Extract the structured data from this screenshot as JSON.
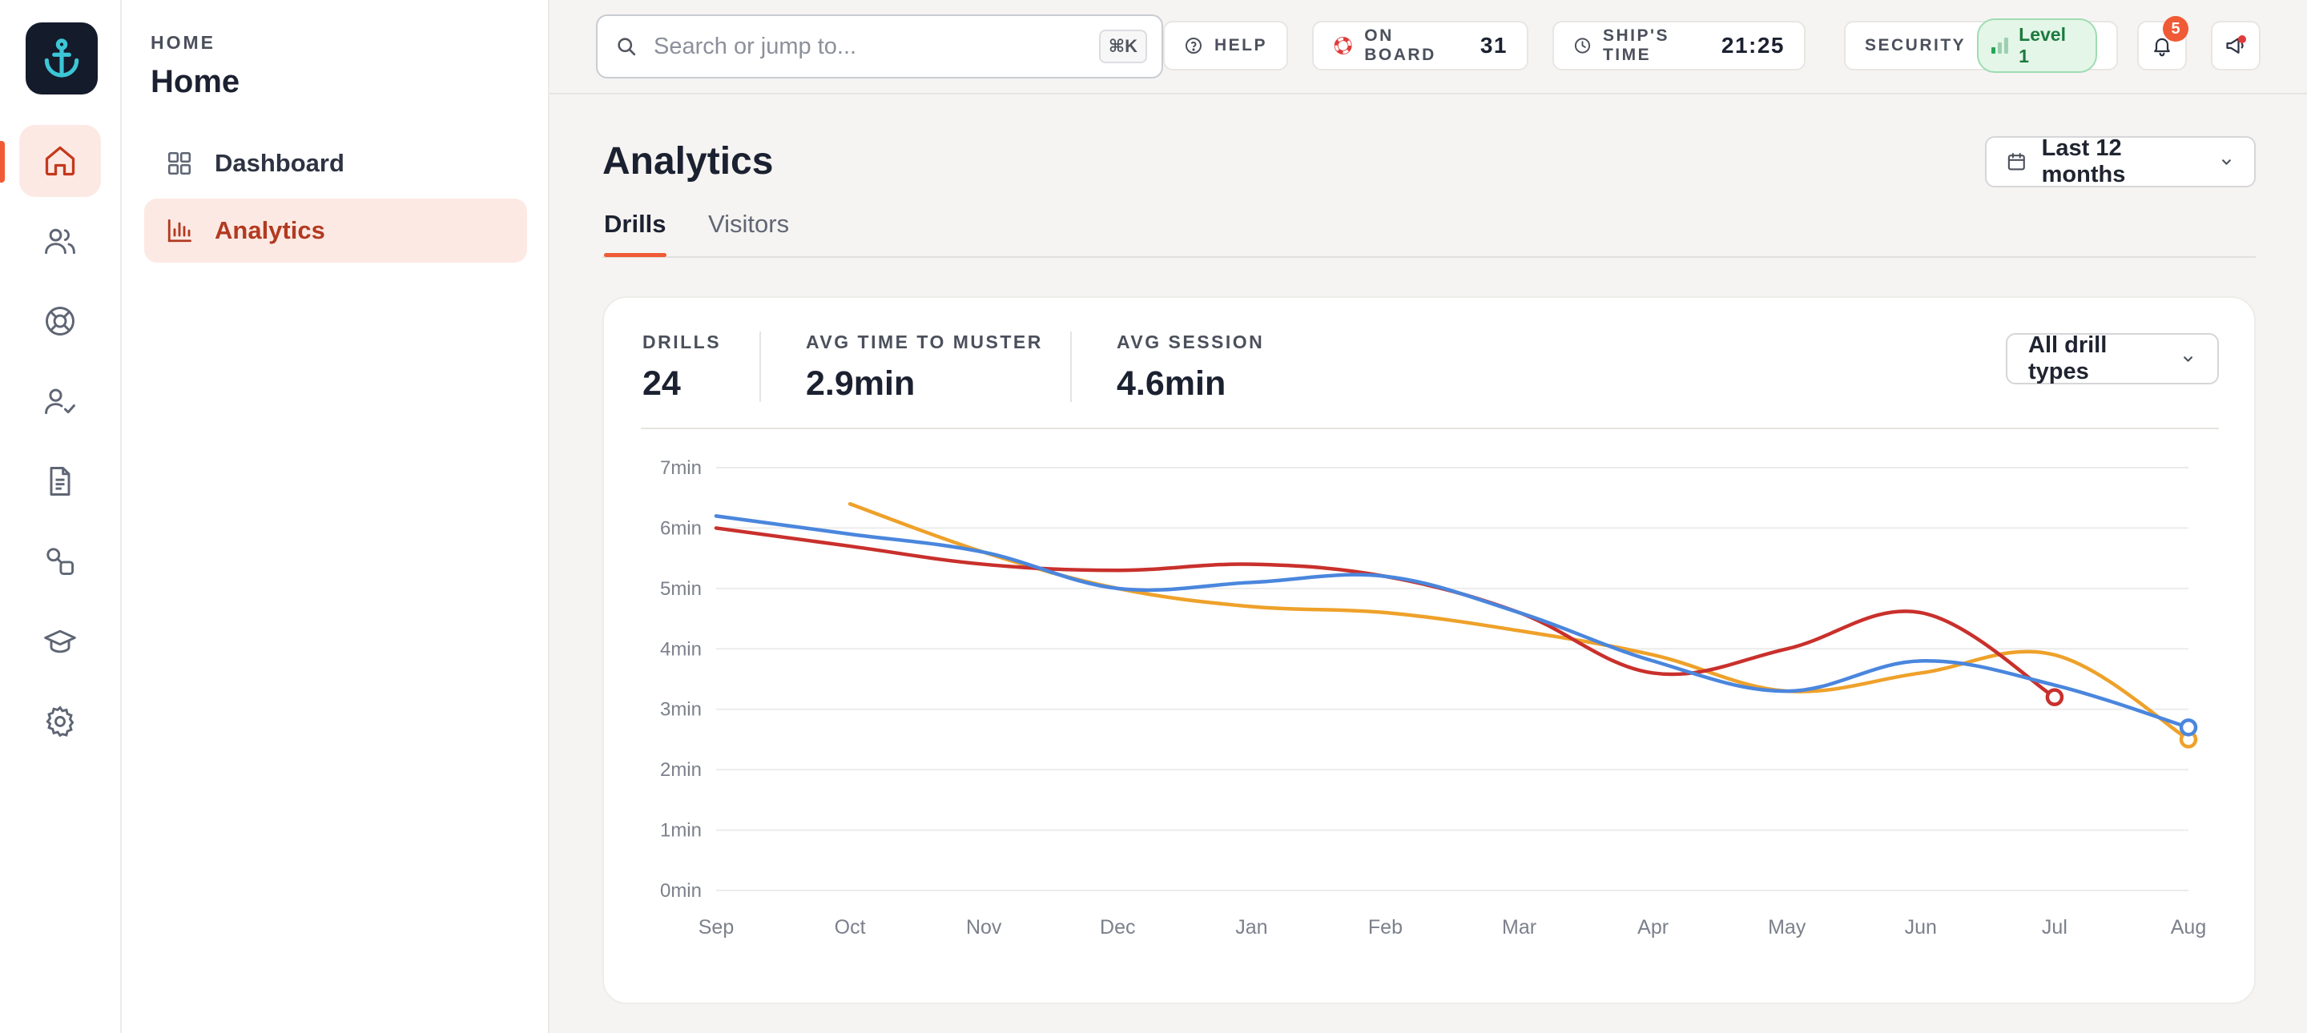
{
  "sidebar": {
    "logo_icon": "anchor-icon",
    "items": [
      {
        "icon": "home-icon",
        "active": true
      },
      {
        "icon": "users-icon"
      },
      {
        "icon": "lifebuoy-icon"
      },
      {
        "icon": "user-check-icon"
      },
      {
        "icon": "document-icon"
      },
      {
        "icon": "shapes-icon"
      },
      {
        "icon": "graduation-cap-icon"
      },
      {
        "icon": "settings-icon"
      }
    ]
  },
  "subnav": {
    "eyebrow": "HOME",
    "title": "Home",
    "items": [
      {
        "label": "Dashboard",
        "icon": "grid-icon"
      },
      {
        "label": "Analytics",
        "icon": "bar-chart-icon",
        "active": true
      }
    ]
  },
  "topbar": {
    "search_placeholder": "Search or jump to...",
    "search_shortcut": "⌘K",
    "help_label": "HELP",
    "onboard_label": "ON BOARD",
    "onboard_value": "31",
    "time_label": "SHIP'S TIME",
    "time_value": "21:25",
    "security_label": "SECURITY",
    "security_level": "Level 1",
    "notifications_count": "5"
  },
  "main": {
    "title": "Analytics",
    "range_label": "Last 12 months",
    "tabs": [
      {
        "label": "Drills",
        "active": true
      },
      {
        "label": "Visitors"
      }
    ]
  },
  "card": {
    "stats": [
      {
        "label": "DRILLS",
        "value": "24"
      },
      {
        "label": "AVG TIME TO MUSTER",
        "value": "2.9min"
      },
      {
        "label": "AVG SESSION",
        "value": "4.6min"
      }
    ],
    "filter_label": "All drill types"
  },
  "colors": {
    "accent": "#f05a35",
    "series_blue": "#4a86dd",
    "series_red": "#c9302c",
    "series_orange": "#eea12a"
  },
  "chart_data": {
    "type": "line",
    "categories": [
      "Sep",
      "Oct",
      "Nov",
      "Dec",
      "Jan",
      "Feb",
      "Mar",
      "Apr",
      "May",
      "Jun",
      "Jul",
      "Aug"
    ],
    "yticks": [
      "0min",
      "1min",
      "2min",
      "3min",
      "4min",
      "5min",
      "6min",
      "7min"
    ],
    "ylim": [
      0,
      7
    ],
    "unit": "min",
    "grid": true,
    "series": [
      {
        "color": "#eea12a",
        "values": [
          null,
          6.4,
          5.6,
          5.0,
          4.7,
          4.6,
          4.3,
          3.9,
          3.3,
          3.6,
          3.9,
          2.5
        ]
      },
      {
        "color": "#c9302c",
        "values": [
          6.0,
          5.7,
          5.4,
          5.3,
          5.4,
          5.2,
          4.6,
          3.6,
          4.0,
          4.6,
          3.2,
          null
        ]
      },
      {
        "color": "#4a86dd",
        "values": [
          6.2,
          5.9,
          5.6,
          5.0,
          5.1,
          5.2,
          4.6,
          3.8,
          3.3,
          3.8,
          3.4,
          2.7
        ]
      }
    ]
  }
}
